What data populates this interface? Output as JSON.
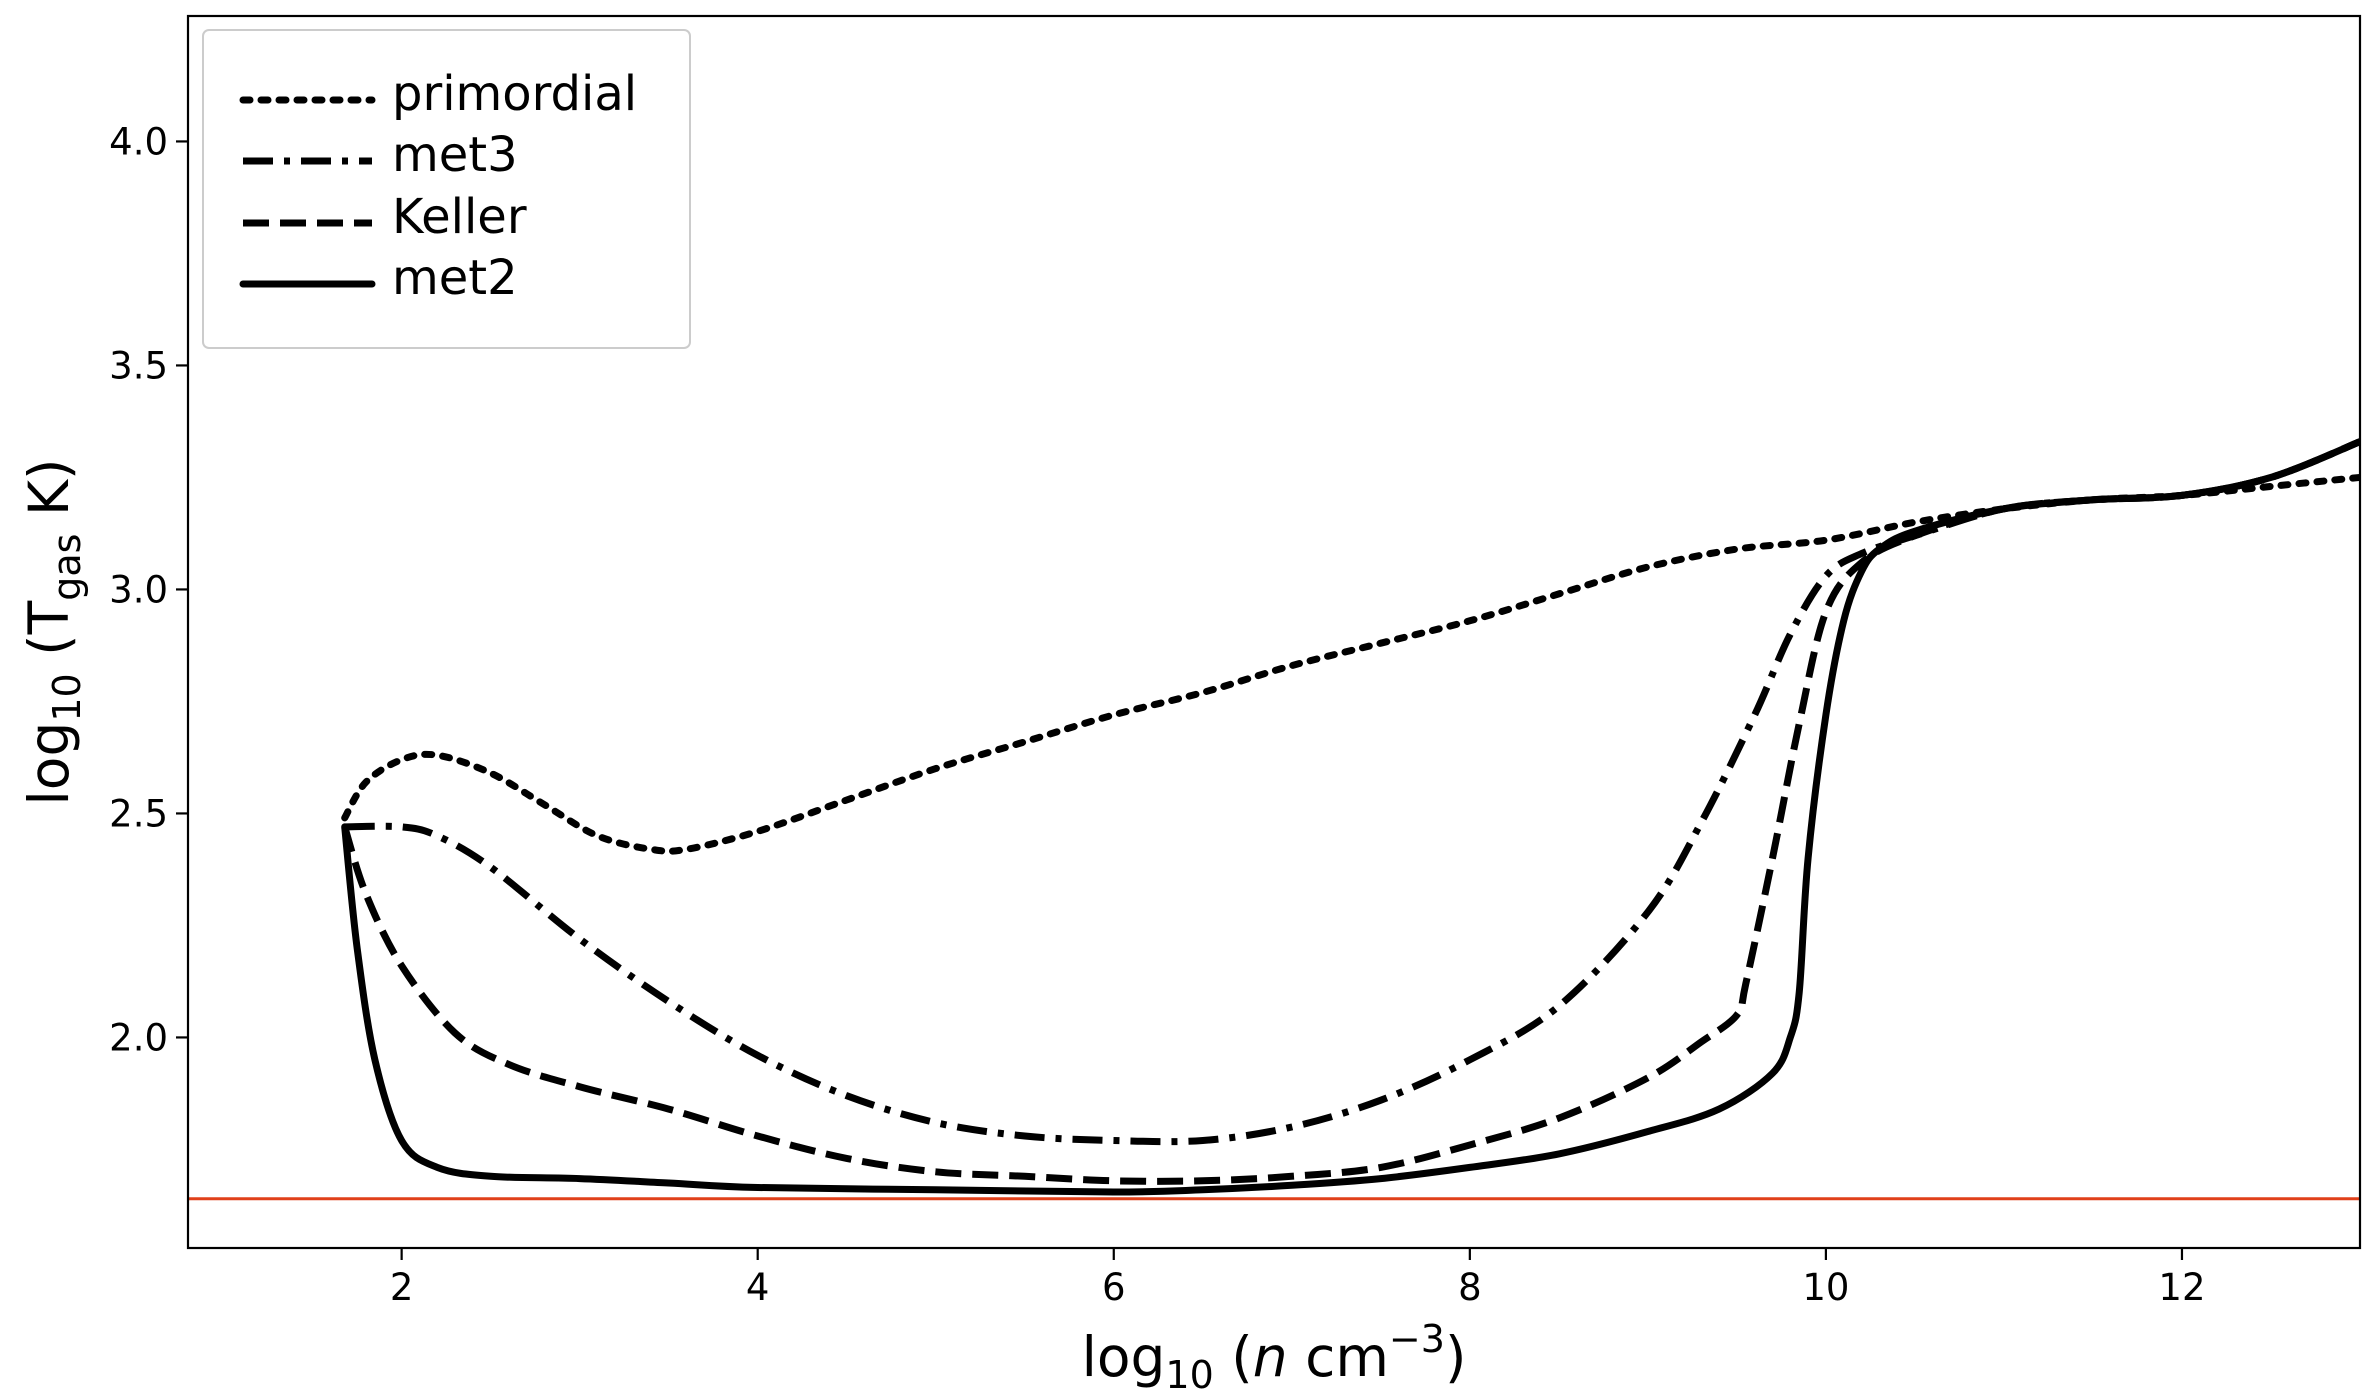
{
  "chart_data": {
    "type": "line",
    "title": "",
    "xlabel": {
      "prefix": "log",
      "sub": "10",
      "open": " (",
      "var": "n",
      "unit": " cm",
      "sup": "−3",
      "close": ")"
    },
    "ylabel": {
      "prefix": "log",
      "sub": "10",
      "open": " (T",
      "sub2": "gas",
      "close": " K)"
    },
    "xlim": [
      0.8,
      13.0
    ],
    "ylim": [
      1.53,
      4.28
    ],
    "xticks": [
      2,
      4,
      6,
      8,
      10,
      12
    ],
    "xtick_labels": [
      "2",
      "4",
      "6",
      "8",
      "10",
      "12"
    ],
    "yticks": [
      2.0,
      2.5,
      3.0,
      3.5,
      4.0
    ],
    "ytick_labels": [
      "2.0",
      "2.5",
      "3.0",
      "3.5",
      "4.0"
    ],
    "grid": false,
    "legend_position": "top-left",
    "hline": {
      "y": 1.64,
      "color": "#e0401a"
    },
    "series": [
      {
        "name": "primordial",
        "style": "dotted",
        "color": "#000000",
        "x": [
          1.68,
          1.8,
          2.0,
          2.2,
          2.5,
          2.8,
          3.1,
          3.4,
          3.6,
          4.0,
          4.5,
          5.0,
          5.5,
          6.0,
          6.5,
          7.0,
          7.5,
          8.0,
          8.5,
          9.0,
          9.5,
          10.0,
          10.5,
          11.0,
          11.5,
          12.0,
          12.5,
          13.0
        ],
        "y": [
          2.49,
          2.57,
          2.62,
          2.63,
          2.59,
          2.52,
          2.45,
          2.42,
          2.42,
          2.46,
          2.53,
          2.6,
          2.66,
          2.72,
          2.77,
          2.83,
          2.88,
          2.93,
          2.99,
          3.05,
          3.09,
          3.11,
          3.15,
          3.18,
          3.2,
          3.21,
          3.23,
          3.25
        ]
      },
      {
        "name": "met3",
        "style": "dashdot",
        "color": "#000000",
        "x": [
          1.68,
          2.0,
          2.2,
          2.5,
          3.0,
          3.5,
          4.0,
          4.5,
          5.0,
          5.5,
          6.0,
          6.5,
          7.0,
          7.5,
          8.0,
          8.5,
          9.0,
          9.3,
          9.6,
          9.8,
          10.0,
          10.2,
          10.5,
          11.0,
          11.5,
          12.0,
          12.5,
          13.0
        ],
        "y": [
          2.47,
          2.47,
          2.45,
          2.38,
          2.22,
          2.08,
          1.96,
          1.87,
          1.81,
          1.78,
          1.77,
          1.77,
          1.8,
          1.86,
          1.95,
          2.07,
          2.28,
          2.48,
          2.72,
          2.9,
          3.03,
          3.08,
          3.12,
          3.18,
          3.2,
          3.21,
          3.25,
          3.33
        ]
      },
      {
        "name": "Keller",
        "style": "dashed",
        "color": "#000000",
        "x": [
          1.68,
          1.8,
          2.0,
          2.3,
          2.6,
          3.0,
          3.5,
          4.0,
          4.5,
          5.0,
          5.5,
          6.0,
          6.5,
          7.0,
          7.5,
          8.0,
          8.5,
          9.0,
          9.3,
          9.5,
          9.55,
          9.7,
          9.85,
          10.0,
          10.2,
          10.5,
          11.0,
          11.5,
          12.0,
          12.5,
          13.0
        ],
        "y": [
          2.47,
          2.32,
          2.16,
          2.01,
          1.94,
          1.89,
          1.84,
          1.78,
          1.73,
          1.7,
          1.69,
          1.68,
          1.68,
          1.69,
          1.71,
          1.76,
          1.82,
          1.91,
          1.99,
          2.05,
          2.12,
          2.4,
          2.7,
          2.95,
          3.06,
          3.12,
          3.18,
          3.2,
          3.21,
          3.25,
          3.33
        ]
      },
      {
        "name": "met2",
        "style": "solid",
        "color": "#000000",
        "x": [
          1.68,
          1.75,
          1.85,
          2.0,
          2.2,
          2.5,
          3.0,
          3.5,
          4.0,
          5.0,
          6.0,
          6.5,
          7.0,
          7.5,
          8.0,
          8.5,
          9.0,
          9.4,
          9.7,
          9.8,
          9.85,
          9.9,
          10.0,
          10.1,
          10.2,
          10.3,
          10.5,
          11.0,
          11.5,
          12.0,
          12.5,
          13.0
        ],
        "y": [
          2.47,
          2.2,
          1.95,
          1.77,
          1.71,
          1.69,
          1.685,
          1.675,
          1.665,
          1.66,
          1.655,
          1.66,
          1.67,
          1.685,
          1.71,
          1.74,
          1.79,
          1.84,
          1.92,
          2.0,
          2.1,
          2.4,
          2.72,
          2.93,
          3.04,
          3.09,
          3.13,
          3.18,
          3.2,
          3.21,
          3.25,
          3.33
        ]
      }
    ]
  }
}
